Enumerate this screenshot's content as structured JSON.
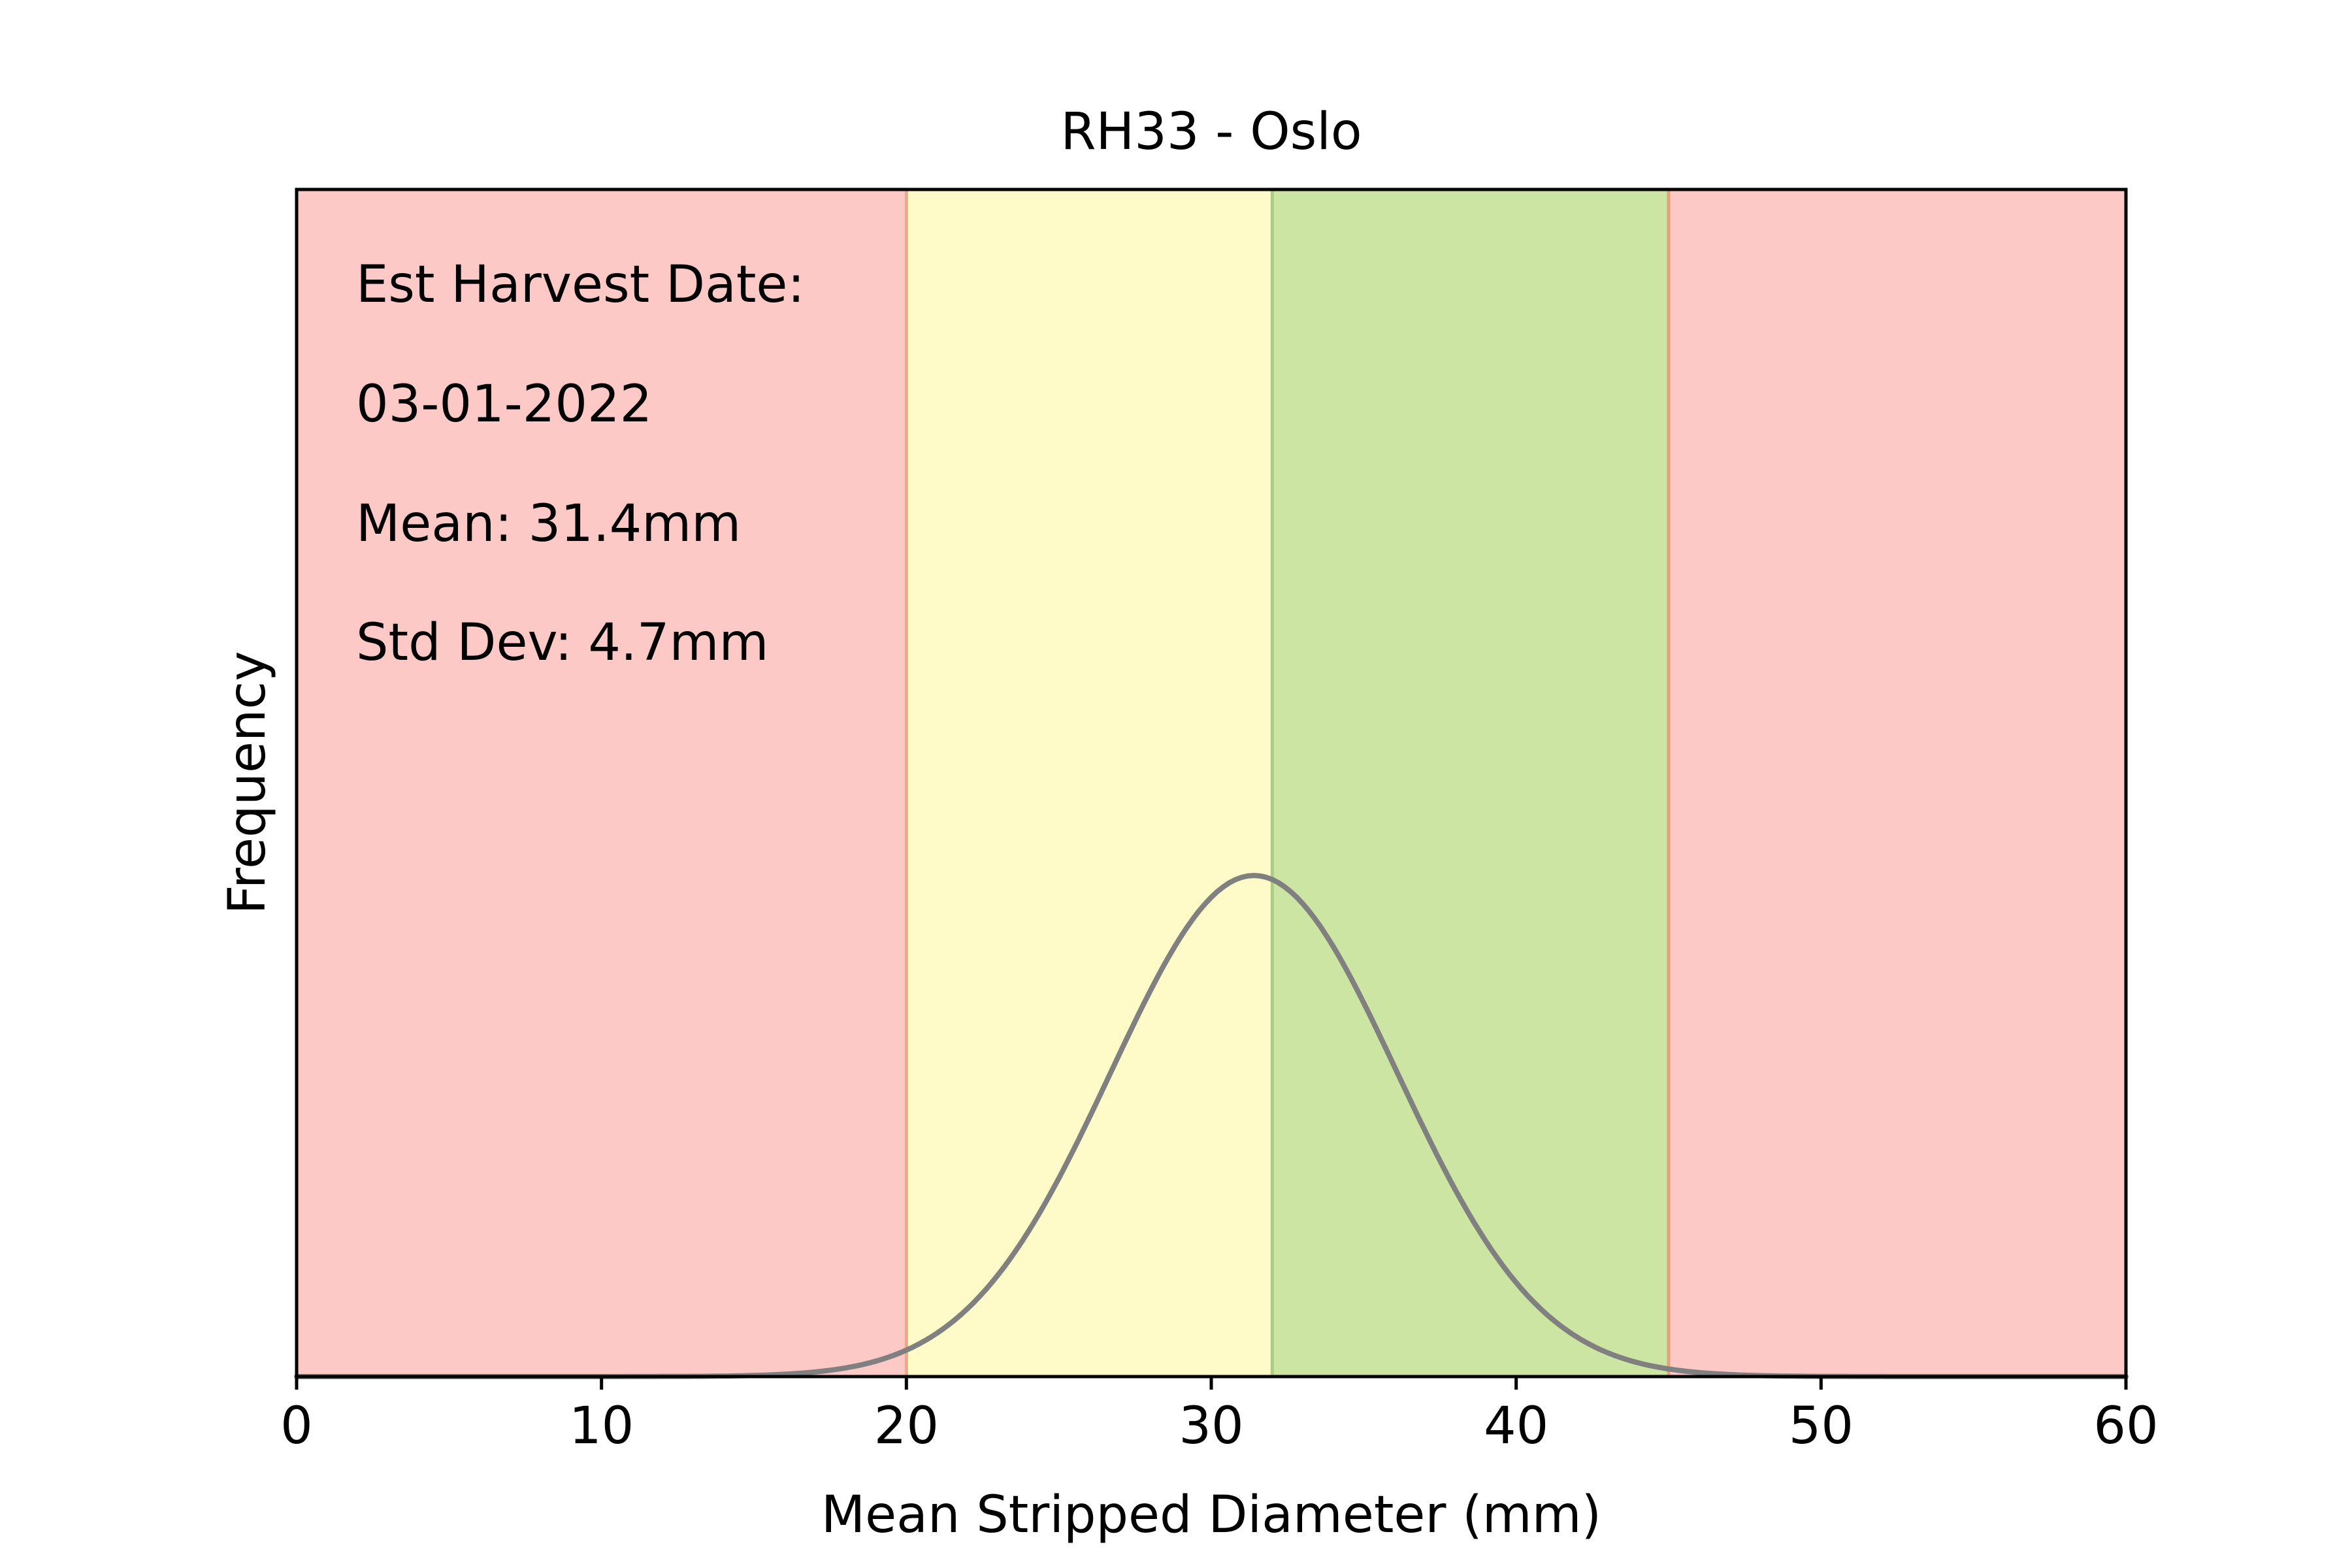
{
  "chart_data": {
    "type": "line",
    "title": "RH33 - Oslo",
    "xlabel": "Mean Stripped Diameter (mm)",
    "ylabel": "Frequency",
    "xlim": [
      0,
      60
    ],
    "x_ticks": [
      0,
      10,
      20,
      30,
      40,
      50,
      60
    ],
    "y_ticks_shown": false,
    "grid": false,
    "annotations": [
      "Est Harvest Date:",
      "03-01-2022",
      "Mean: 31.4mm",
      "Std Dev: 4.7mm"
    ],
    "distribution": {
      "kind": "normal",
      "mean": 31.4,
      "std_dev": 4.7
    },
    "series": [
      {
        "color": "#808080",
        "curve": "normal",
        "mean": 31.4,
        "std_dev": 4.7
      }
    ],
    "bands": [
      {
        "from": 0,
        "to": 20,
        "color": "#fcc9c7"
      },
      {
        "from": 20,
        "to": 32,
        "color": "#fefbc8"
      },
      {
        "from": 32,
        "to": 45,
        "color": "#cde5a3"
      },
      {
        "from": 45,
        "to": 60,
        "color": "#fcc9c7"
      }
    ],
    "band_edge_lines": [
      {
        "x": 20,
        "color": "#f0a882"
      },
      {
        "x": 32,
        "color": "#a7cf88"
      },
      {
        "x": 45,
        "color": "#e7a07a"
      }
    ]
  }
}
